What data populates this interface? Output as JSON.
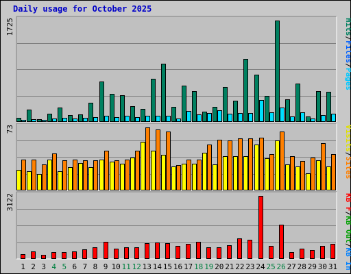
{
  "chart_data": {
    "type": "bar",
    "title": "Daily usage for October 2025",
    "days": [
      "1",
      "2",
      "3",
      "4",
      "5",
      "6",
      "7",
      "8",
      "9",
      "10",
      "11",
      "12",
      "13",
      "14",
      "15",
      "16",
      "17",
      "18",
      "19",
      "20",
      "21",
      "22",
      "23",
      "24",
      "25",
      "26",
      "27",
      "28",
      "29",
      "30",
      "31"
    ],
    "weekend_days": [
      "4",
      "5",
      "11",
      "12",
      "18",
      "19",
      "25",
      "26"
    ],
    "colors": {
      "background": "#c8c8c8",
      "plot_bg": "#c0c0c0",
      "hits": "#008060",
      "files": "#00e0ff",
      "sites": "#ff8000",
      "visits": "#ffff00",
      "kb": "#ff0000",
      "weekday_label": "#000000",
      "weekend_label": "#008040",
      "title": "#0000c8",
      "legend_hits": "#008060",
      "legend_files": "#0060ff",
      "legend_pages": "#00c8ff",
      "legend_visits": "#e0e000",
      "legend_sites": "#ff8000",
      "legend_kbin": "#0080ff",
      "legend_kbout": "#00a000",
      "legend_kbf": "#ff0000"
    },
    "panels": [
      {
        "id": "hits-files-pages",
        "ymax": 1725,
        "ymax_label": "1725",
        "legend": [
          {
            "text": "Hits",
            "color": "#008060"
          },
          {
            "text": "/",
            "color": "#000000"
          },
          {
            "text": "Files",
            "color": "#0060ff"
          },
          {
            "text": "/",
            "color": "#000000"
          },
          {
            "text": "Pages",
            "color": "#00c8ff"
          }
        ],
        "series": [
          {
            "name": "Hits",
            "color": "#008060",
            "values": [
              65,
              210,
              45,
              140,
              250,
              120,
              130,
              330,
              690,
              480,
              460,
              270,
              220,
              740,
              990,
              260,
              620,
              520,
              170,
              260,
              600,
              360,
              1070,
              800,
              440,
              1725,
              380,
              650,
              90,
              530,
              510
            ]
          },
          {
            "name": "Files",
            "color": "#00e0ff",
            "values": [
              30,
              50,
              30,
              60,
              70,
              60,
              70,
              80,
              110,
              80,
              110,
              80,
              100,
              100,
              100,
              60,
              190,
              130,
              150,
              200,
              140,
              150,
              150,
              370,
              160,
              240,
              90,
              160,
              60,
              120,
              140
            ]
          }
        ]
      },
      {
        "id": "visits-sites",
        "ymax": 73,
        "ymax_label": "73",
        "legend": [
          {
            "text": "Visits",
            "color": "#e0e000"
          },
          {
            "text": "/",
            "color": "#000000"
          },
          {
            "text": "Sites",
            "color": "#ff8000"
          }
        ],
        "series": [
          {
            "name": "Visits",
            "color": "#ffff00",
            "values": [
              24,
              22,
              19,
              36,
              22,
              27,
              32,
              27,
              36,
              33,
              31,
              38,
              56,
              46,
              41,
              28,
              31,
              31,
              44,
              30,
              40,
              40,
              40,
              53,
              37,
              58,
              30,
              28,
              20,
              35,
              28
            ]
          },
          {
            "name": "Sites",
            "color": "#ff8000",
            "values": [
              36,
              36,
              30,
              43,
              35,
              36,
              35,
              35,
              46,
              35,
              36,
              46,
              73,
              71,
              68,
              29,
              36,
              36,
              53,
              59,
              58,
              60,
              60,
              61,
              42,
              68,
              40,
              34,
              38,
              55,
              42
            ]
          }
        ]
      },
      {
        "id": "kbf",
        "ymax": 3122,
        "ymax_label": "3122",
        "legend": [
          {
            "text": "KB F",
            "color": "#ff0000"
          },
          {
            "text": "/",
            "color": "#000000"
          },
          {
            "text": "KB Out",
            "color": "#00a000"
          },
          {
            "text": "/",
            "color": "#000000"
          },
          {
            "text": "KB In",
            "color": "#0080ff"
          }
        ],
        "series": [
          {
            "name": "KB F",
            "color": "#ff0000",
            "values": [
              230,
              390,
              220,
              330,
              350,
              370,
              480,
              590,
              860,
              500,
              570,
              570,
              770,
              800,
              780,
              640,
              760,
              860,
              570,
              580,
              690,
              1010,
              960,
              3122,
              650,
              1690,
              330,
              510,
              450,
              630,
              730
            ]
          }
        ]
      }
    ]
  }
}
